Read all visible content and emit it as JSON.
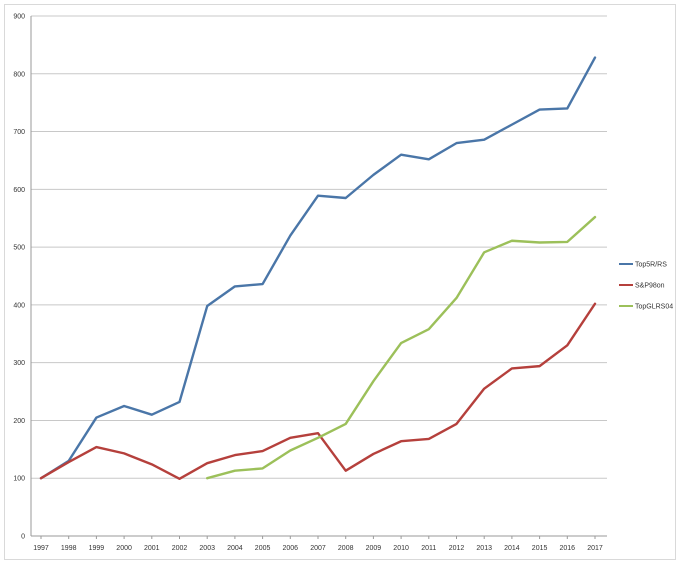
{
  "chart_data": {
    "type": "line",
    "title": "",
    "xlabel": "",
    "ylabel": "",
    "categories": [
      "1997",
      "1998",
      "1999",
      "2000",
      "2001",
      "2002",
      "2003",
      "2004",
      "2005",
      "2006",
      "2007",
      "2008",
      "2009",
      "2010",
      "2011",
      "2012",
      "2013",
      "2014",
      "2015",
      "2016",
      "2017"
    ],
    "ylim": [
      0,
      900
    ],
    "yticks": [
      0,
      100,
      200,
      300,
      400,
      500,
      600,
      700,
      800,
      900
    ],
    "grid": true,
    "legend_position": "right",
    "series": [
      {
        "name": "Top5R/RS",
        "color": "#4a76a8",
        "values": [
          100,
          130,
          205,
          225,
          210,
          232,
          398,
          432,
          436,
          520,
          589,
          585,
          625,
          660,
          652,
          680,
          686,
          712,
          738,
          740,
          828
        ]
      },
      {
        "name": "S&P98on",
        "color": "#b5403c",
        "values": [
          100,
          128,
          154,
          143,
          124,
          99,
          126,
          140,
          147,
          170,
          178,
          113,
          142,
          164,
          168,
          194,
          255,
          290,
          294,
          330,
          402
        ]
      },
      {
        "name": "TopGLRS04",
        "color": "#9cc05a",
        "values": [
          null,
          null,
          null,
          null,
          null,
          null,
          100,
          113,
          117,
          148,
          170,
          194,
          268,
          334,
          358,
          412,
          491,
          511,
          508,
          509,
          552
        ]
      }
    ]
  }
}
